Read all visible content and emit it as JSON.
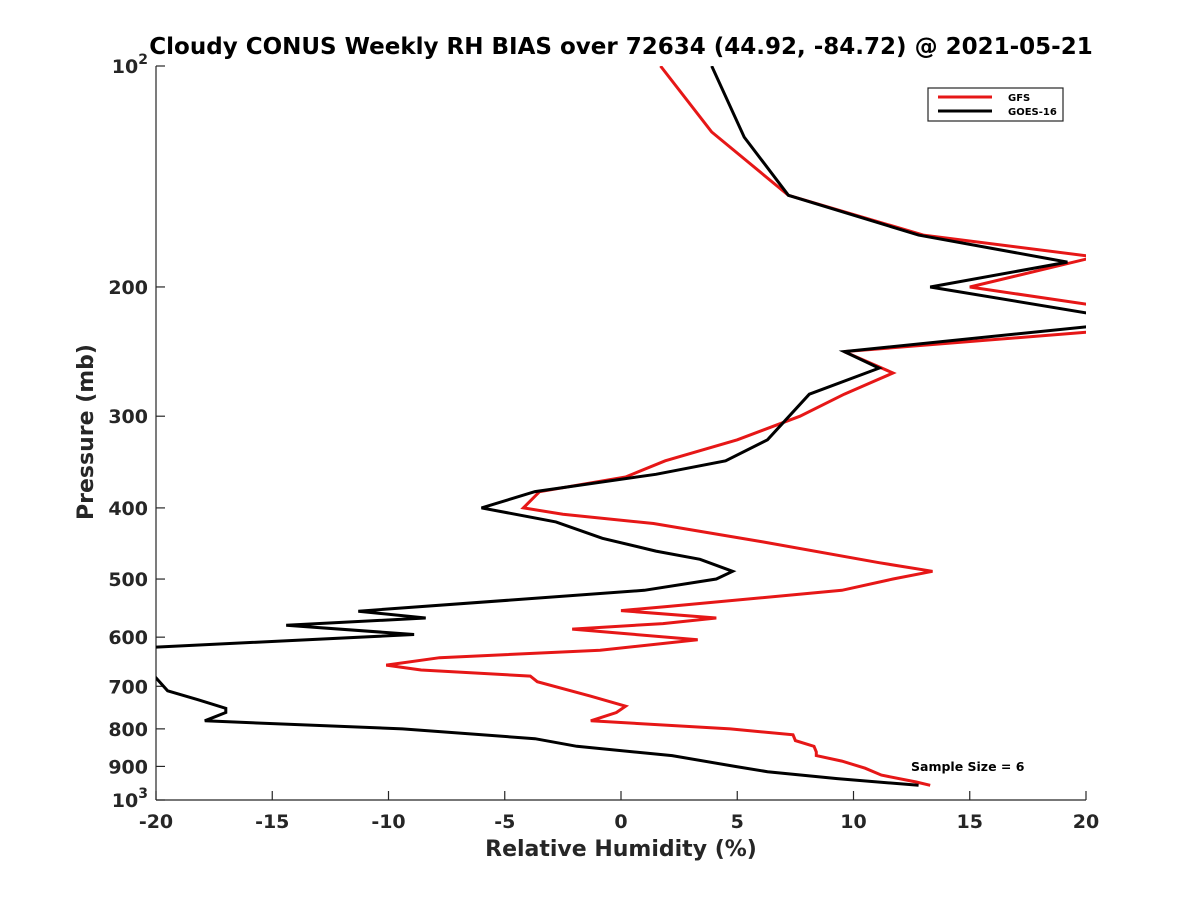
{
  "chart_data": {
    "type": "line",
    "title": "Cloudy CONUS Weekly RH BIAS over 72634 (44.92, -84.72) @ 2021-05-21",
    "xlabel": "Relative Humidity (%)",
    "ylabel": "Pressure (mb)",
    "xlim": [
      -20,
      20
    ],
    "ylim": [
      100,
      1000
    ],
    "y_scale": "log",
    "y_reversed": true,
    "grid": false,
    "legend_position": "top-right",
    "x_ticks": [
      "-20",
      "-15",
      "-10",
      "-5",
      "0",
      "5",
      "10",
      "15",
      "20"
    ],
    "y_ticks": [
      {
        "value": 100,
        "base": "10",
        "exp": "2"
      },
      {
        "value": 200,
        "label": "200"
      },
      {
        "value": 300,
        "label": "300"
      },
      {
        "value": 400,
        "label": "400"
      },
      {
        "value": 500,
        "label": "500"
      },
      {
        "value": 600,
        "label": "600"
      },
      {
        "value": 700,
        "label": "700"
      },
      {
        "value": 800,
        "label": "800"
      },
      {
        "value": 900,
        "label": "900"
      },
      {
        "value": 1000,
        "base": "10",
        "exp": "3"
      }
    ],
    "annotation": "Sample Size = 6",
    "series": [
      {
        "name": "GFS",
        "color": "#e61717",
        "points": [
          [
            1.7,
            100
          ],
          [
            3.9,
            123
          ],
          [
            7.2,
            150
          ],
          [
            13.0,
            170
          ],
          [
            20.4,
            182
          ],
          [
            15.0,
            200
          ],
          [
            20.4,
            212
          ],
          [
            20.4,
            230
          ],
          [
            9.6,
            245
          ],
          [
            11.7,
            262
          ],
          [
            9.6,
            280
          ],
          [
            7.7,
            300
          ],
          [
            5.0,
            323
          ],
          [
            1.9,
            345
          ],
          [
            0.2,
            363
          ],
          [
            -3.5,
            380
          ],
          [
            -4.2,
            400
          ],
          [
            -2.5,
            408
          ],
          [
            1.4,
            420
          ],
          [
            6.1,
            445
          ],
          [
            11.1,
            475
          ],
          [
            13.4,
            488
          ],
          [
            11.7,
            500
          ],
          [
            9.5,
            518
          ],
          [
            2.0,
            545
          ],
          [
            0.0,
            552
          ],
          [
            4.1,
            565
          ],
          [
            1.8,
            575
          ],
          [
            -2.1,
            585
          ],
          [
            3.3,
            605
          ],
          [
            -0.9,
            625
          ],
          [
            -7.8,
            640
          ],
          [
            -10.1,
            655
          ],
          [
            -8.6,
            665
          ],
          [
            -3.9,
            678
          ],
          [
            -3.6,
            690
          ],
          [
            -1.3,
            722
          ],
          [
            0.2,
            745
          ],
          [
            -0.2,
            760
          ],
          [
            -1.3,
            780
          ],
          [
            4.7,
            800
          ],
          [
            7.4,
            815
          ],
          [
            7.5,
            830
          ],
          [
            8.3,
            845
          ],
          [
            8.4,
            860
          ],
          [
            8.4,
            870
          ],
          [
            9.5,
            885
          ],
          [
            10.5,
            905
          ],
          [
            11.2,
            925
          ],
          [
            12.7,
            945
          ],
          [
            13.3,
            955
          ]
        ]
      },
      {
        "name": "GOES-16",
        "color": "#000000",
        "points": [
          [
            3.9,
            100
          ],
          [
            5.3,
            125
          ],
          [
            7.2,
            150
          ],
          [
            12.8,
            170
          ],
          [
            19.2,
            185
          ],
          [
            13.3,
            200
          ],
          [
            20.4,
            218
          ],
          [
            20.4,
            226
          ],
          [
            9.6,
            245
          ],
          [
            11.1,
            258
          ],
          [
            8.1,
            280
          ],
          [
            6.3,
            323
          ],
          [
            4.5,
            345
          ],
          [
            1.5,
            360
          ],
          [
            -3.7,
            380
          ],
          [
            -6.0,
            400
          ],
          [
            -2.8,
            418
          ],
          [
            -0.8,
            440
          ],
          [
            1.5,
            458
          ],
          [
            3.4,
            470
          ],
          [
            4.8,
            488
          ],
          [
            4.1,
            500
          ],
          [
            1.0,
            518
          ],
          [
            -11.3,
            553
          ],
          [
            -8.4,
            565
          ],
          [
            -14.4,
            578
          ],
          [
            -8.9,
            595
          ],
          [
            -20.4,
            620
          ],
          [
            -20.4,
            660
          ],
          [
            -19.5,
            710
          ],
          [
            -18.2,
            730
          ],
          [
            -17.0,
            750
          ],
          [
            -17.0,
            760
          ],
          [
            -17.9,
            780
          ],
          [
            -9.4,
            800
          ],
          [
            -3.7,
            825
          ],
          [
            -1.9,
            845
          ],
          [
            2.2,
            870
          ],
          [
            4.9,
            900
          ],
          [
            6.3,
            915
          ],
          [
            9.3,
            935
          ],
          [
            12.8,
            955
          ]
        ]
      }
    ]
  }
}
